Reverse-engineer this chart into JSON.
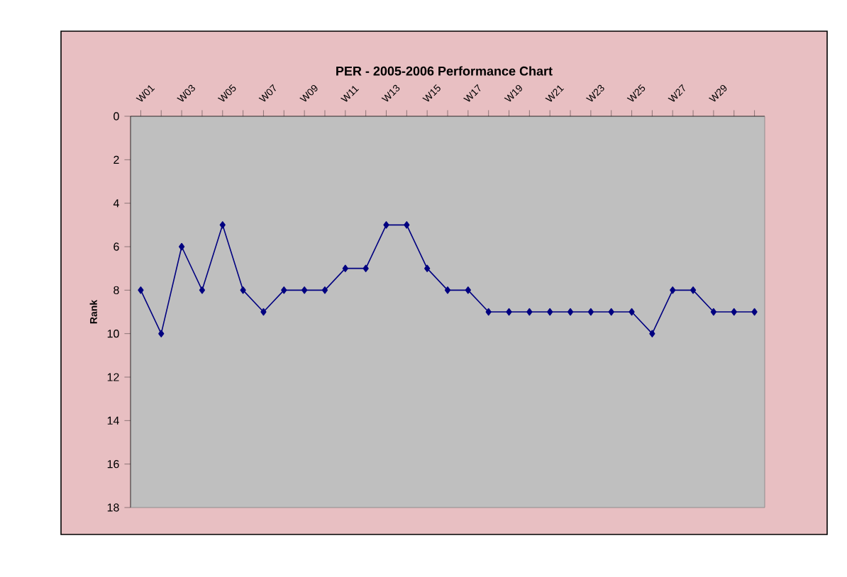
{
  "chart_data": {
    "type": "line",
    "title": "PER - 2005-2006 Performance Chart",
    "ylabel": "Rank",
    "categories": [
      "W01",
      null,
      "W03",
      null,
      "W05",
      null,
      "W07",
      null,
      "W09",
      null,
      "W11",
      null,
      "W13",
      null,
      "W15",
      null,
      "W17",
      null,
      "W19",
      null,
      "W21",
      null,
      "W23",
      null,
      "W25",
      null,
      "W27",
      null,
      "W29",
      null,
      null
    ],
    "series": [
      {
        "color": "#000080",
        "values": [
          8,
          10,
          6,
          8,
          5,
          8,
          9,
          8,
          8,
          8,
          7,
          7,
          5,
          5,
          7,
          8,
          8,
          9,
          9,
          9,
          9,
          9,
          9,
          9,
          9,
          10,
          8,
          8,
          9,
          9,
          9
        ]
      }
    ],
    "ylim": [
      18,
      0
    ],
    "yticks": [
      0,
      2,
      4,
      6,
      8,
      10,
      12,
      14,
      16,
      18
    ],
    "marker": "diamond",
    "line_style": "solid",
    "grid": false
  }
}
